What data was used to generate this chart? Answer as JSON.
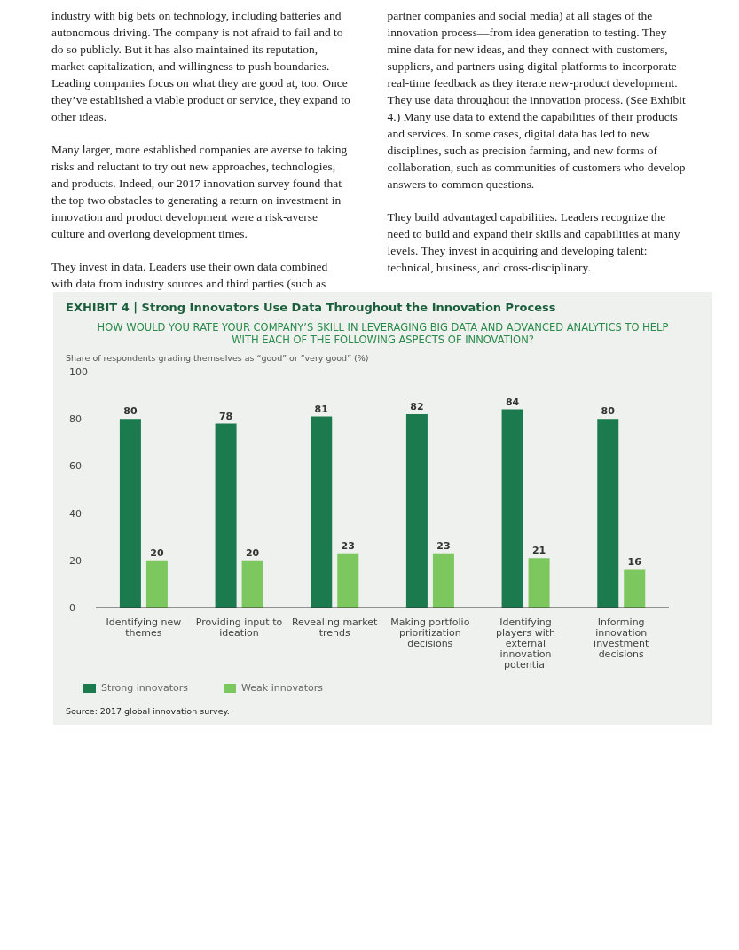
{
  "chart_data": {
    "type": "bar",
    "title": "EXHIBIT 4 | Strong Innovators Use Data Throughout the Innovation Process",
    "subtitle": "HOW WOULD YOU RATE YOUR COMPANY’S SKILL IN LEVERAGING BIG DATA AND ADVANCED ANALYTICS TO HELP WITH EACH OF THE FOLLOWING ASPECTS OF INNOVATION?",
    "ylabel": "Share of respondents grading themselves as “good” or “very good” (%)",
    "categories": [
      "Identifying new themes",
      "Providing input to ideation",
      "Revealing market trends",
      "Making portfolio prioritization decisions",
      "Identifying players with external innovation potential",
      "Informing innovation investment decisions"
    ],
    "series": [
      {
        "name": "Strong innovators",
        "color": "#1b7a4e",
        "values": [
          80,
          78,
          81,
          82,
          84,
          80
        ]
      },
      {
        "name": "Weak innovators",
        "color": "#7cc75e",
        "values": [
          20,
          20,
          23,
          23,
          21,
          16
        ]
      }
    ],
    "ylim": [
      0,
      100
    ],
    "yticks": [
      0,
      20,
      40,
      60,
      80,
      100
    ],
    "legend": "bottom left",
    "data_labels": true,
    "annotations": [
      "industry with big bets on technology, including batteries and autonomous driving. The company is not afraid to fail and to do so publicly. But it has also maintained its reputation, market capitalization, and willingness to push boundaries. Leading companies focus on what they are good at, too. Once they’ve established a viable product or service, they expand to other ideas.",
      "Many larger, more established companies are averse to taking risks and reluctant to try out new approaches, technologies, and products. Indeed, our 2017 innovation survey found that the top two obstacles to generating a return on investment in innovation and product development were a risk-averse culture and overlong development times.",
      "They invest in data. Leaders use their own data combined with data from industry sources and third parties (such as partner companies and social media) at all stages of the innovation process—from idea generation to testing. They mine data for new ideas, and they connect with customers, suppliers, and partners using digital platforms to incorporate real-time feedback as they iterate new-product development. They use data throughout the innovation process. (See Exhibit 4.) Many use data to extend the capabilities of their products and services. In some cases, digital data has led to new disciplines, such as precision farming, and new forms of collaboration, such as communities of customers who develop answers to common questions.",
      "They build advantaged capabilities. Leaders recognize the need to build and expand their skills and capabilities at many levels. They invest in acquiring and developing talent: technical, business, and cross-disciplinary.",
      "Source: 2017 global innovation survey."
    ]
  }
}
